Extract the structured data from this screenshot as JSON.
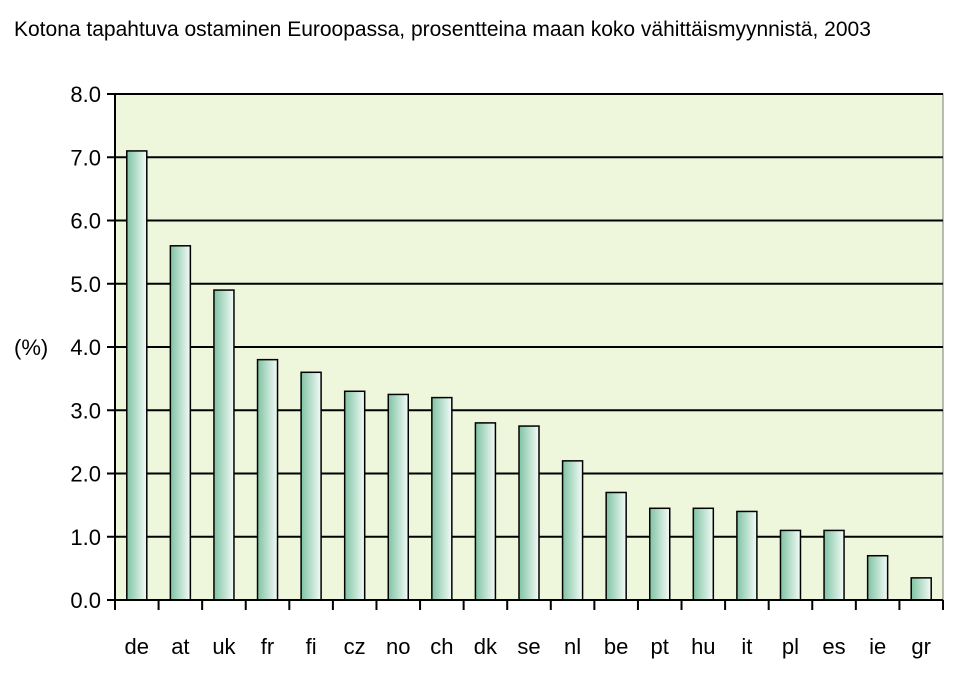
{
  "chart_data": {
    "type": "bar",
    "title": "Kotona tapahtuva ostaminen Euroopassa, prosentteina maan koko vähittäismyynnistä, 2003",
    "xlabel": "",
    "ylabel": "(%)",
    "categories": [
      "de",
      "at",
      "uk",
      "fr",
      "fi",
      "cz",
      "no",
      "ch",
      "dk",
      "se",
      "nl",
      "be",
      "pt",
      "hu",
      "it",
      "pl",
      "es",
      "ie",
      "gr"
    ],
    "values": [
      7.1,
      5.6,
      4.9,
      3.8,
      3.6,
      3.3,
      3.25,
      3.2,
      2.8,
      2.75,
      2.2,
      1.7,
      1.45,
      1.45,
      1.4,
      1.1,
      1.1,
      0.7,
      0.35
    ],
    "ylim": [
      0,
      8
    ],
    "yticks": [
      "0.0",
      "1.0",
      "2.0",
      "3.0",
      "4.0",
      "5.0",
      "6.0",
      "7.0",
      "8.0"
    ],
    "grid": true,
    "legend": "none",
    "colors": {
      "plot_background": "#eef7dc",
      "bar_dark": "#7fc3a3",
      "bar_light": "#f4fbf7",
      "bar_stroke": "#000000",
      "grid": "#000000"
    }
  }
}
